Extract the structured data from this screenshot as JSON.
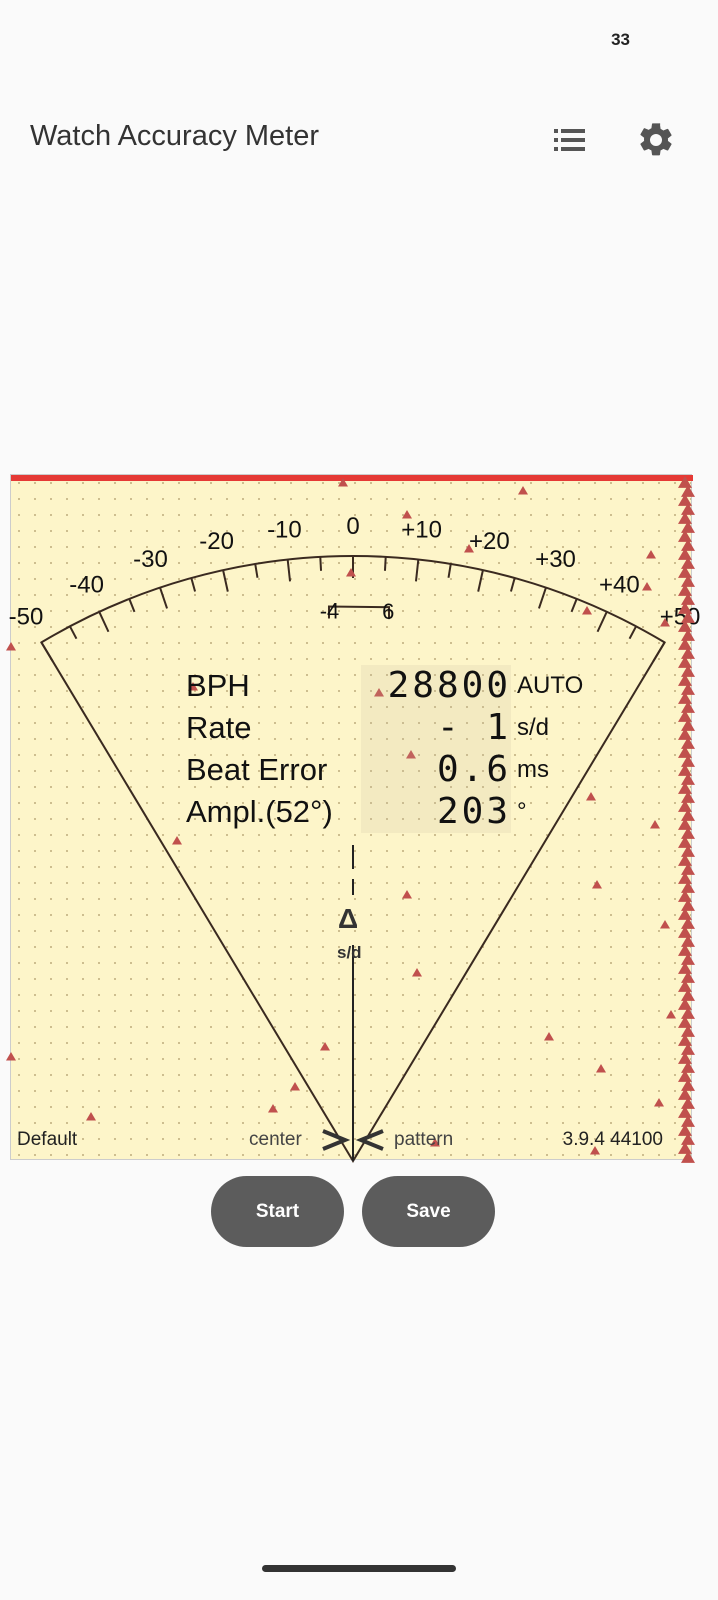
{
  "status_bar": {
    "battery": "33"
  },
  "app_bar": {
    "title": "Watch Accuracy Meter",
    "list_icon": "list-icon",
    "settings_icon": "gear-icon"
  },
  "meter": {
    "scale_labels": [
      "-50",
      "-40",
      "-30",
      "-20",
      "-10",
      "0",
      "+10",
      "+20",
      "+30",
      "+40",
      "+50"
    ],
    "scale_values": [
      -50,
      -40,
      -30,
      -20,
      -10,
      0,
      10,
      20,
      30,
      40,
      50
    ],
    "window_labels": [
      "-4",
      "6"
    ],
    "window_range": [
      -4,
      6
    ],
    "delta_symbol": "Δ",
    "delta_unit": "s/d",
    "readings": [
      {
        "label": "BPH",
        "value": "28800",
        "unit": "AUTO"
      },
      {
        "label": "Rate",
        "value": "- 1",
        "unit": "s/d"
      },
      {
        "label": "Beat Error",
        "value": "0.6",
        "unit": "ms"
      },
      {
        "label": "Ampl.(52°)",
        "value": "203",
        "unit": "°"
      }
    ],
    "footer": {
      "profile": "Default",
      "center": "center",
      "pattern": "pattern",
      "version": "3.9.4 44100"
    },
    "colors": {
      "background": "#fdf5c9",
      "marker": "#c0504d",
      "top_bar": "#e53935"
    }
  },
  "buttons": {
    "start": "Start",
    "save": "Save"
  }
}
